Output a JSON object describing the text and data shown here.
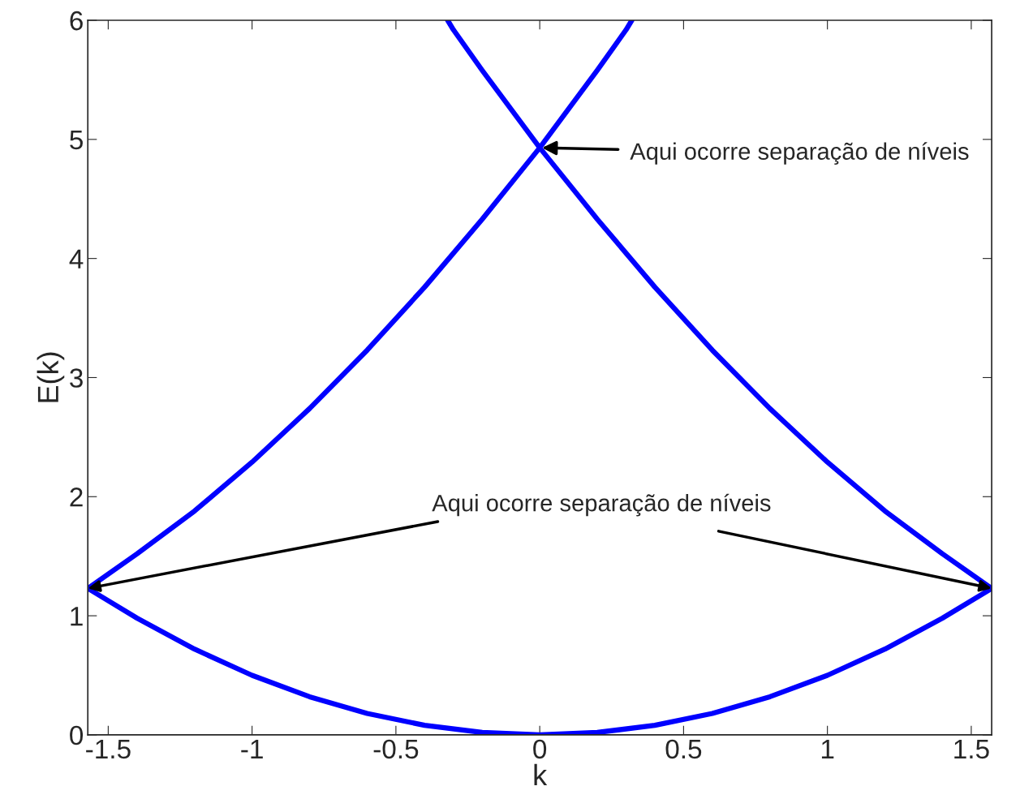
{
  "chart_data": {
    "type": "line",
    "xlabel": "k",
    "ylabel": "E(k)",
    "xlim": [
      -1.571,
      1.571
    ],
    "ylim": [
      0,
      6
    ],
    "xticks": [
      -1.5,
      -1,
      -0.5,
      0,
      0.5,
      1,
      1.5
    ],
    "yticks": [
      0,
      1,
      2,
      3,
      4,
      5,
      6
    ],
    "grid": false,
    "legend": false,
    "marker": "none",
    "line_style": "solid",
    "series": [
      {
        "color": "#0000ff",
        "x": [
          -1.571,
          -1.4,
          -1.2,
          -1.0,
          -0.8,
          -0.6,
          -0.4,
          -0.2,
          0,
          0.2,
          0.4,
          0.6,
          0.8,
          1.0,
          1.2,
          1.4,
          1.571
        ],
        "values": [
          1.23,
          0.98,
          0.72,
          0.5,
          0.32,
          0.18,
          0.08,
          0.02,
          0,
          0.02,
          0.08,
          0.18,
          0.32,
          0.5,
          0.72,
          0.98,
          1.23
        ]
      },
      {
        "color": "#0000ff",
        "x": [
          -1.571,
          -1.4,
          -1.2,
          -1.0,
          -0.8,
          -0.6,
          -0.4,
          -0.2,
          0,
          0.2,
          0.3,
          0.32
        ],
        "values": [
          1.23,
          1.52,
          1.88,
          2.29,
          2.74,
          3.23,
          3.76,
          4.33,
          4.93,
          5.58,
          5.92,
          6.0
        ]
      },
      {
        "color": "#0000ff",
        "x": [
          -0.32,
          -0.3,
          -0.2,
          0,
          0.2,
          0.4,
          0.6,
          0.8,
          1.0,
          1.2,
          1.4,
          1.571
        ],
        "values": [
          6.0,
          5.92,
          5.58,
          4.93,
          4.33,
          3.76,
          3.23,
          2.74,
          2.29,
          1.88,
          1.52,
          1.23
        ]
      }
    ],
    "annotations": [
      {
        "text": "Aqui ocorre separação de níveis",
        "x": 0,
        "y": 4.93
      },
      {
        "text": "Aqui ocorre separação de níveis",
        "x": -1.571,
        "y": 1.23
      }
    ]
  }
}
